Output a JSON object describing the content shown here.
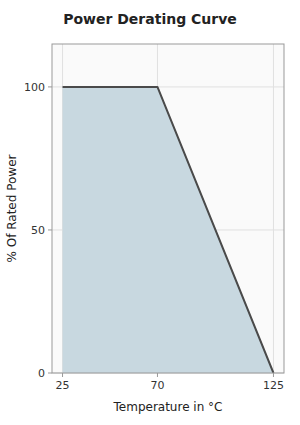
{
  "chart_data": {
    "type": "area",
    "title": "Power Derating Curve",
    "x": [
      25,
      70,
      125
    ],
    "values": [
      100,
      100,
      0
    ],
    "color": "#c8d8e0",
    "xlabel": "Temperature in °C",
    "ylabel": "% Of Rated Power",
    "xlim": [
      20,
      130
    ],
    "xticks": [
      25,
      70,
      125
    ],
    "ylim": [
      0,
      115
    ],
    "yticks": [
      0,
      50,
      100
    ],
    "grid": true
  }
}
